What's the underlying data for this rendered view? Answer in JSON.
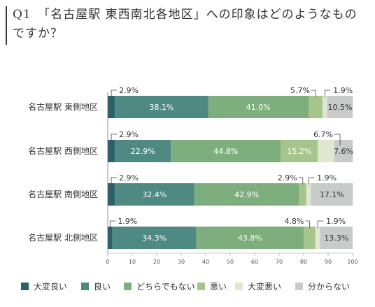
{
  "title": "Q1　「名古屋駅 東西南北各地区」への印象はどのようなものですか？",
  "chart_data": {
    "type": "bar",
    "orientation": "horizontal",
    "stacked": true,
    "xlim": [
      0,
      100
    ],
    "xticks": [
      "0",
      "10",
      "20",
      "30",
      "40",
      "50",
      "60",
      "70",
      "80",
      "90",
      "100"
    ],
    "categories": [
      "名古屋駅 東側地区",
      "名古屋駅 西側地区",
      "名古屋駅 南側地区",
      "名古屋駅 北側地区"
    ],
    "series": [
      {
        "name": "大変良い",
        "color": "#2f5f6b",
        "values": [
          2.9,
          2.9,
          2.9,
          1.9
        ],
        "labels": [
          "2.9%",
          "2.9%",
          "2.9%",
          "1.9%"
        ]
      },
      {
        "name": "良い",
        "color": "#4f8a82",
        "values": [
          38.1,
          22.9,
          32.4,
          34.3
        ],
        "labels": [
          "38.1%",
          "22.9%",
          "32.4%",
          "34.3%"
        ]
      },
      {
        "name": "どちらでもない",
        "color": "#7fae7e",
        "values": [
          41.0,
          44.8,
          42.9,
          43.8
        ],
        "labels": [
          "41.0%",
          "44.8%",
          "42.9%",
          "43.8%"
        ]
      },
      {
        "name": "悪い",
        "color": "#a6c58d",
        "values": [
          5.7,
          15.2,
          2.9,
          4.8
        ],
        "labels": [
          "5.7%",
          "15.2%",
          "2.9%",
          "4.8%"
        ]
      },
      {
        "name": "大変悪い",
        "color": "#dfe8cf",
        "values": [
          1.9,
          6.7,
          1.9,
          1.9
        ],
        "labels": [
          "1.9%",
          "6.7%",
          "1.9%",
          "1.9%"
        ]
      },
      {
        "name": "分からない",
        "color": "#c9caca",
        "values": [
          10.5,
          7.6,
          17.1,
          13.3
        ],
        "labels": [
          "10.5%",
          "7.6%",
          "17.1%",
          "13.3%"
        ]
      }
    ],
    "legend_position": "bottom",
    "grid": false
  }
}
